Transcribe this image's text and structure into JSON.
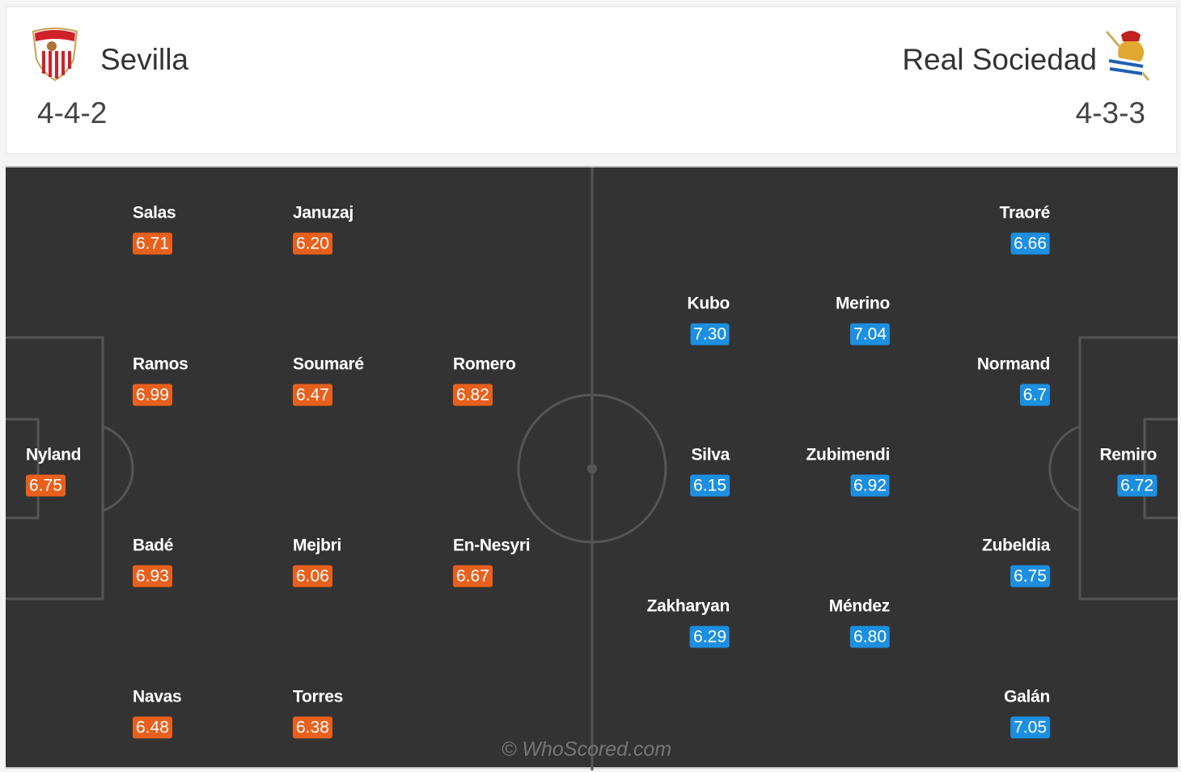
{
  "home": {
    "name": "Sevilla",
    "formation": "4-4-2",
    "color": "#e8601c",
    "crest": "sevilla-crest-icon",
    "players": [
      {
        "name": "Salas",
        "rating": "6.71"
      },
      {
        "name": "Januzaj",
        "rating": "6.20"
      },
      {
        "name": "Ramos",
        "rating": "6.99"
      },
      {
        "name": "Soumaré",
        "rating": "6.47"
      },
      {
        "name": "Romero",
        "rating": "6.82"
      },
      {
        "name": "Nyland",
        "rating": "6.75"
      },
      {
        "name": "Badé",
        "rating": "6.93"
      },
      {
        "name": "Mejbri",
        "rating": "6.06"
      },
      {
        "name": "En-Nesyri",
        "rating": "6.67"
      },
      {
        "name": "Navas",
        "rating": "6.48"
      },
      {
        "name": "Torres",
        "rating": "6.38"
      }
    ]
  },
  "away": {
    "name": "Real Sociedad",
    "formation": "4-3-3",
    "color": "#1c8fe0",
    "crest": "real-sociedad-crest-icon",
    "players": [
      {
        "name": "Traoré",
        "rating": "6.66"
      },
      {
        "name": "Kubo",
        "rating": "7.30"
      },
      {
        "name": "Merino",
        "rating": "7.04"
      },
      {
        "name": "Normand",
        "rating": "6.7"
      },
      {
        "name": "Silva",
        "rating": "6.15"
      },
      {
        "name": "Zubimendi",
        "rating": "6.92"
      },
      {
        "name": "Remiro",
        "rating": "6.72"
      },
      {
        "name": "Zubeldia",
        "rating": "6.75"
      },
      {
        "name": "Zakharyan",
        "rating": "6.29"
      },
      {
        "name": "Méndez",
        "rating": "6.80"
      },
      {
        "name": "Galán",
        "rating": "7.05"
      }
    ]
  },
  "watermark": "© WhoScored.com"
}
